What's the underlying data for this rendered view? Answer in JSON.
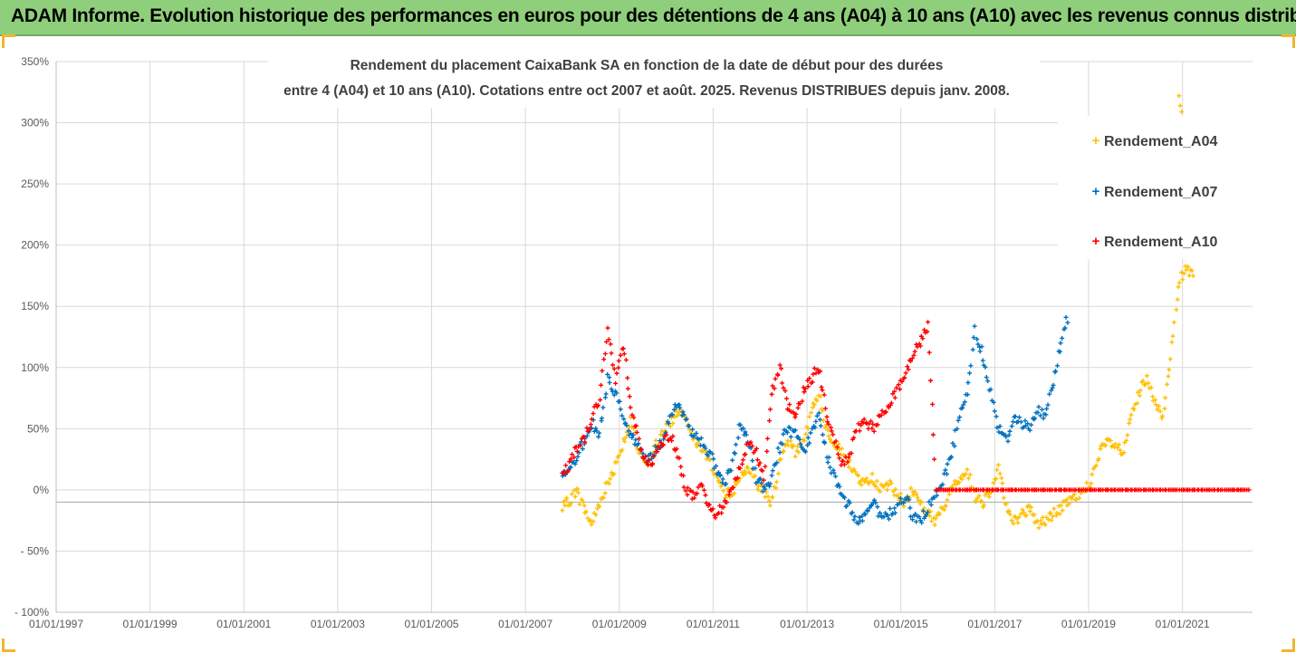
{
  "banner": {
    "title": "ADAM Informe. Evolution historique des performances en euros pour des détentions de 4 ans (A04) à 10 ans (A10) avec les revenus connus distribués"
  },
  "colors": {
    "banner_bg": "#8fcf7b",
    "accent_corner": "#f2b531",
    "A04": "#ffc000",
    "A07": "#0070c0",
    "A10": "#ff0000",
    "grid": "#d9d9d9",
    "axis_text": "#595959"
  },
  "chart_data": {
    "type": "scatter",
    "title_line1": "Rendement du placement CaixaBank SA en fonction de la date de début pour des durées",
    "title_line2": "entre 4 (A04) et 10 ans (A10). Cotations entre oct 2007 et août. 2025. Revenus DISTRIBUES depuis janv. 2008.",
    "xlabel": "",
    "ylabel": "",
    "x_range": [
      "1997-01-01",
      "2022-06-30"
    ],
    "ylim": [
      -100,
      350
    ],
    "y_ticks": [
      -100,
      -50,
      0,
      50,
      100,
      150,
      200,
      250,
      300,
      350
    ],
    "y_tick_labels": [
      "- 100%",
      "- 50%",
      "0%",
      "50%",
      "100%",
      "150%",
      "200%",
      "250%",
      "300%",
      "350%"
    ],
    "x_tick_labels": [
      "01/01/1997",
      "01/01/1999",
      "01/01/2001",
      "01/01/2003",
      "01/01/2005",
      "01/01/2007",
      "01/01/2009",
      "01/01/2011",
      "01/01/2013",
      "01/01/2015",
      "01/01/2017",
      "01/01/2019",
      "01/01/2021"
    ],
    "x_ticks": [
      "1997-01-01",
      "1999-01-01",
      "2001-01-01",
      "2003-01-01",
      "2005-01-01",
      "2007-01-01",
      "2009-01-01",
      "2011-01-01",
      "2013-01-01",
      "2015-01-01",
      "2017-01-01",
      "2019-01-01",
      "2021-01-01"
    ],
    "marker": "+",
    "grid": true,
    "legend_position": "top-right",
    "series": [
      {
        "name": "Rendement_A04",
        "x": [
          "2007-10-15",
          "2007-12-01",
          "2008-02-01",
          "2008-04-01",
          "2008-06-01",
          "2008-08-01",
          "2008-10-01",
          "2008-12-01",
          "2009-02-01",
          "2009-04-01",
          "2009-06-01",
          "2009-08-01",
          "2009-10-01",
          "2009-12-01",
          "2010-02-01",
          "2010-04-01",
          "2010-06-01",
          "2010-08-01",
          "2010-10-01",
          "2010-12-01",
          "2011-02-01",
          "2011-04-01",
          "2011-06-01",
          "2011-08-01",
          "2011-10-01",
          "2011-12-01",
          "2012-02-01",
          "2012-04-01",
          "2012-06-01",
          "2012-08-01",
          "2012-10-01",
          "2012-12-01",
          "2013-02-01",
          "2013-04-01",
          "2013-06-01",
          "2013-08-01",
          "2013-10-01",
          "2013-12-01",
          "2014-02-01",
          "2014-04-01",
          "2014-06-01",
          "2014-08-01",
          "2014-10-01",
          "2014-12-01",
          "2015-02-01",
          "2015-04-01",
          "2015-06-01",
          "2015-08-01",
          "2015-10-01",
          "2015-12-01",
          "2016-02-01",
          "2016-04-01",
          "2016-06-01",
          "2016-08-01",
          "2016-10-01",
          "2016-12-01",
          "2017-02-01",
          "2017-04-01",
          "2017-06-01",
          "2017-08-01",
          "2017-10-01",
          "2017-12-01",
          "2018-02-01",
          "2018-04-01",
          "2018-06-01",
          "2018-08-01",
          "2018-10-01",
          "2018-12-01",
          "2019-02-01",
          "2019-04-01",
          "2019-06-01",
          "2019-08-01",
          "2019-10-01",
          "2019-12-01",
          "2020-02-01",
          "2020-04-01",
          "2020-06-01",
          "2020-08-01",
          "2020-10-01",
          "2020-12-01",
          "2021-02-01",
          "2021-04-01"
        ],
        "values": [
          -15,
          -10,
          0,
          -15,
          -28,
          -10,
          5,
          20,
          40,
          55,
          30,
          20,
          35,
          45,
          55,
          65,
          60,
          45,
          35,
          25,
          10,
          -5,
          0,
          10,
          20,
          5,
          0,
          -10,
          20,
          40,
          30,
          40,
          60,
          80,
          50,
          40,
          30,
          20,
          10,
          5,
          10,
          0,
          5,
          -5,
          -10,
          0,
          -10,
          -20,
          -25,
          -15,
          0,
          10,
          15,
          -5,
          -10,
          0,
          20,
          -15,
          -25,
          -20,
          -15,
          -28,
          -25,
          -20,
          -15,
          -10,
          -5,
          0,
          10,
          30,
          40,
          35,
          30,
          60,
          80,
          90,
          70,
          60,
          110,
          170,
          180,
          175
        ]
      },
      {
        "name": "Rendement_A07",
        "x": [
          "2007-10-15",
          "2007-12-01",
          "2008-02-01",
          "2008-04-01",
          "2008-06-01",
          "2008-08-01",
          "2008-10-01",
          "2008-12-01",
          "2009-02-01",
          "2009-04-01",
          "2009-06-01",
          "2009-08-01",
          "2009-10-01",
          "2009-12-01",
          "2010-02-01",
          "2010-04-01",
          "2010-06-01",
          "2010-08-01",
          "2010-10-01",
          "2010-12-01",
          "2011-02-01",
          "2011-04-01",
          "2011-06-01",
          "2011-08-01",
          "2011-10-01",
          "2011-12-01",
          "2012-02-01",
          "2012-04-01",
          "2012-06-01",
          "2012-08-01",
          "2012-10-01",
          "2012-12-01",
          "2013-02-01",
          "2013-04-01",
          "2013-06-01",
          "2013-08-01",
          "2013-10-01",
          "2013-12-01",
          "2014-02-01",
          "2014-04-01",
          "2014-06-01",
          "2014-08-01",
          "2014-10-01",
          "2014-12-01",
          "2015-02-01",
          "2015-04-01",
          "2015-06-01",
          "2015-08-01",
          "2015-10-01",
          "2015-12-01",
          "2016-02-01",
          "2016-04-01",
          "2016-06-01",
          "2016-08-01",
          "2016-10-01",
          "2016-12-01",
          "2017-02-01",
          "2017-04-01",
          "2017-06-01",
          "2017-08-01",
          "2017-10-01",
          "2017-12-01",
          "2018-02-01",
          "2018-04-01",
          "2018-06-01",
          "2018-08-01"
        ],
        "values": [
          10,
          15,
          25,
          40,
          55,
          45,
          90,
          80,
          60,
          45,
          35,
          25,
          30,
          40,
          60,
          70,
          55,
          45,
          40,
          30,
          15,
          5,
          20,
          55,
          40,
          10,
          0,
          10,
          35,
          50,
          45,
          30,
          45,
          60,
          30,
          10,
          -5,
          -15,
          -25,
          -20,
          -10,
          -25,
          -20,
          -15,
          -5,
          -20,
          -25,
          -15,
          -5,
          10,
          30,
          60,
          80,
          130,
          110,
          80,
          50,
          40,
          60,
          55,
          50,
          65,
          60,
          90,
          120,
          145
        ]
      },
      {
        "name": "Rendement_A10",
        "x": [
          "2007-10-15",
          "2007-12-01",
          "2008-02-01",
          "2008-04-01",
          "2008-06-01",
          "2008-08-01",
          "2008-10-01",
          "2008-12-01",
          "2009-02-01",
          "2009-04-01",
          "2009-06-01",
          "2009-08-01",
          "2009-10-01",
          "2009-12-01",
          "2010-02-01",
          "2010-04-01",
          "2010-06-01",
          "2010-08-01",
          "2010-10-01",
          "2010-12-01",
          "2011-02-01",
          "2011-04-01",
          "2011-06-01",
          "2011-08-01",
          "2011-10-01",
          "2011-12-01",
          "2012-02-01",
          "2012-04-01",
          "2012-06-01",
          "2012-08-01",
          "2012-10-01",
          "2012-12-01",
          "2013-02-01",
          "2013-04-01",
          "2013-06-01",
          "2013-08-01",
          "2013-10-01",
          "2013-12-01",
          "2014-02-01",
          "2014-04-01",
          "2014-06-01",
          "2014-08-01",
          "2014-10-01",
          "2014-12-01",
          "2015-02-01",
          "2015-04-01",
          "2015-06-01",
          "2015-08-01",
          "2015-10-01",
          "2016-02-01",
          "2016-08-01",
          "2017-02-01",
          "2017-08-01",
          "2018-02-01",
          "2018-08-01",
          "2019-02-01",
          "2019-08-01",
          "2020-02-01",
          "2020-08-01",
          "2021-02-01",
          "2021-08-01",
          "2022-02-01",
          "2022-06-15"
        ],
        "values": [
          15,
          20,
          35,
          40,
          60,
          75,
          130,
          90,
          120,
          70,
          40,
          20,
          25,
          40,
          45,
          30,
          0,
          -5,
          5,
          -15,
          -20,
          -10,
          0,
          20,
          40,
          30,
          10,
          80,
          100,
          70,
          60,
          80,
          90,
          100,
          60,
          40,
          20,
          30,
          50,
          55,
          50,
          60,
          70,
          80,
          95,
          110,
          120,
          135,
          0,
          0,
          0,
          0,
          0,
          0,
          0,
          0,
          0,
          0,
          0,
          0,
          0,
          0,
          0
        ]
      }
    ]
  }
}
